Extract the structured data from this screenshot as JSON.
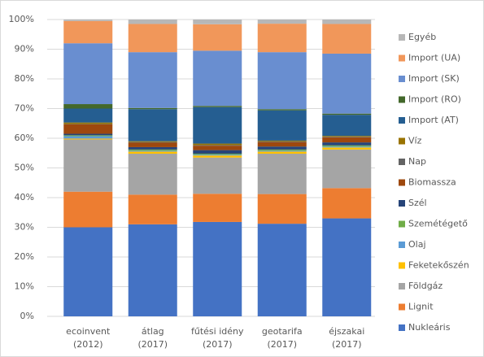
{
  "chart_data": {
    "type": "stacked_bar",
    "categories": [
      [
        "ecoinvent",
        "(2012)"
      ],
      [
        "átlag",
        "(2017)"
      ],
      [
        "fűtési idény",
        "(2017)"
      ],
      [
        "geotarifa",
        "(2017)"
      ],
      [
        "éjszakai",
        "(2017)"
      ]
    ],
    "ylim": [
      0,
      100
    ],
    "yticks": [
      {
        "value": 0,
        "label": "0%"
      },
      {
        "value": 10,
        "label": "10%"
      },
      {
        "value": 20,
        "label": "20%"
      },
      {
        "value": 30,
        "label": "30%"
      },
      {
        "value": 40,
        "label": "40%"
      },
      {
        "value": 50,
        "label": "50%"
      },
      {
        "value": 60,
        "label": "60%"
      },
      {
        "value": 70,
        "label": "70%"
      },
      {
        "value": 80,
        "label": "80%"
      },
      {
        "value": 90,
        "label": "90%"
      },
      {
        "value": 100,
        "label": "100%"
      }
    ],
    "grid": true,
    "legend": "right",
    "series": [
      {
        "name": "Nukleáris",
        "color": "#4472c4",
        "values": [
          30,
          31,
          31.8,
          31.2,
          33
        ]
      },
      {
        "name": "Lignit",
        "color": "#ed7d31",
        "values": [
          12,
          10,
          9.5,
          10,
          10.2
        ]
      },
      {
        "name": "Földgáz",
        "color": "#a5a5a5",
        "values": [
          17.6,
          13.8,
          12.2,
          13.6,
          13
        ]
      },
      {
        "name": "Feketekőszén",
        "color": "#ffc000",
        "values": [
          0.3,
          0.7,
          0.7,
          0.7,
          0.7
        ]
      },
      {
        "name": "Olaj",
        "color": "#5b9bd5",
        "values": [
          0.8,
          0.3,
          0.3,
          0.3,
          0.3
        ]
      },
      {
        "name": "Szemétégető",
        "color": "#70ad47",
        "values": [
          0.3,
          0.4,
          0.3,
          0.4,
          0.4
        ]
      },
      {
        "name": "Szél",
        "color": "#264478",
        "values": [
          0.5,
          0.8,
          1.2,
          1,
          1
        ]
      },
      {
        "name": "Biomassza",
        "color": "#9e480e",
        "values": [
          3.2,
          1.5,
          1.5,
          1.5,
          1.7
        ]
      },
      {
        "name": "Nap",
        "color": "#636363",
        "values": [
          0.1,
          0.2,
          0.2,
          0.2,
          0.2
        ]
      },
      {
        "name": "Víz",
        "color": "#997300",
        "values": [
          0.5,
          0.3,
          0.5,
          0.3,
          0.3
        ]
      },
      {
        "name": "Import (AT)",
        "color": "#255e91",
        "values": [
          4.7,
          10.8,
          12.3,
          10.2,
          7.1
        ]
      },
      {
        "name": "Import (RO)",
        "color": "#43682b",
        "values": [
          1.5,
          0.4,
          0.4,
          0.4,
          0.4
        ]
      },
      {
        "name": "Import (SK)",
        "color": "#698ed0",
        "values": [
          20.5,
          18.8,
          18.6,
          19.2,
          20.2
        ]
      },
      {
        "name": "Import (UA)",
        "color": "#f1975a",
        "values": [
          7.5,
          9.5,
          8.9,
          9.6,
          10
        ]
      },
      {
        "name": "Egyéb",
        "color": "#b7b7b7",
        "values": [
          0.5,
          1.5,
          1.6,
          1.4,
          1.5
        ]
      }
    ]
  }
}
